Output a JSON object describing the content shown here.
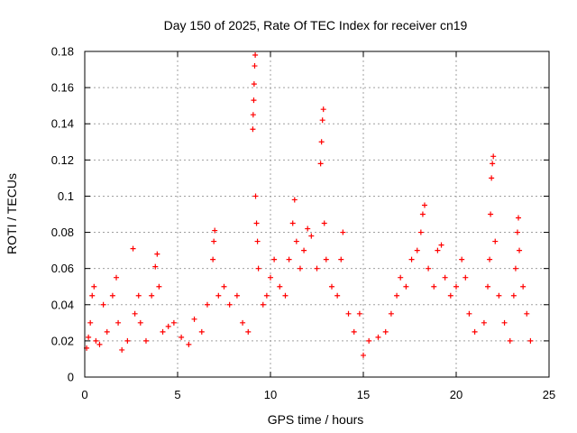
{
  "chart_data": {
    "type": "scatter",
    "title": "Day 150 of 2025, Rate Of TEC Index for receiver cn19",
    "xlabel": "GPS time / hours",
    "ylabel": "ROTI / TECUs",
    "xlim": [
      0,
      25
    ],
    "ylim": [
      0,
      0.18
    ],
    "x_ticks": [
      0,
      5,
      10,
      15,
      20,
      25
    ],
    "x_tick_labels": [
      "0",
      "5",
      "10",
      "15",
      "20",
      "25"
    ],
    "y_ticks": [
      0,
      0.02,
      0.04,
      0.06,
      0.08,
      0.1,
      0.12,
      0.14,
      0.16,
      0.18
    ],
    "y_tick_labels": [
      "0",
      "0.02",
      "0.04",
      "0.06",
      "0.08",
      "0.1",
      "0.12",
      "0.14",
      "0.16",
      "0.18"
    ],
    "grid": true,
    "marker": "plus",
    "color": "#ff0000",
    "series": [
      {
        "points": [
          [
            0.1,
            0.016
          ],
          [
            0.2,
            0.022
          ],
          [
            0.3,
            0.03
          ],
          [
            0.4,
            0.045
          ],
          [
            0.5,
            0.05
          ],
          [
            0.6,
            0.02
          ],
          [
            0.8,
            0.018
          ],
          [
            1.0,
            0.04
          ],
          [
            1.2,
            0.025
          ],
          [
            1.5,
            0.045
          ],
          [
            1.7,
            0.055
          ],
          [
            1.8,
            0.03
          ],
          [
            2.0,
            0.015
          ],
          [
            2.3,
            0.02
          ],
          [
            2.6,
            0.071
          ],
          [
            2.7,
            0.035
          ],
          [
            2.9,
            0.045
          ],
          [
            3.0,
            0.03
          ],
          [
            3.3,
            0.02
          ],
          [
            3.6,
            0.045
          ],
          [
            3.8,
            0.061
          ],
          [
            3.9,
            0.068
          ],
          [
            4.0,
            0.05
          ],
          [
            4.2,
            0.025
          ],
          [
            4.5,
            0.028
          ],
          [
            4.8,
            0.03
          ],
          [
            5.2,
            0.022
          ],
          [
            5.6,
            0.018
          ],
          [
            5.9,
            0.032
          ],
          [
            6.3,
            0.025
          ],
          [
            6.6,
            0.04
          ],
          [
            6.9,
            0.065
          ],
          [
            6.95,
            0.075
          ],
          [
            7.0,
            0.081
          ],
          [
            7.2,
            0.045
          ],
          [
            7.5,
            0.05
          ],
          [
            7.8,
            0.04
          ],
          [
            8.2,
            0.045
          ],
          [
            8.5,
            0.03
          ],
          [
            8.8,
            0.025
          ],
          [
            9.05,
            0.137
          ],
          [
            9.07,
            0.145
          ],
          [
            9.1,
            0.153
          ],
          [
            9.12,
            0.162
          ],
          [
            9.15,
            0.172
          ],
          [
            9.18,
            0.178
          ],
          [
            9.2,
            0.1
          ],
          [
            9.25,
            0.085
          ],
          [
            9.3,
            0.075
          ],
          [
            9.35,
            0.06
          ],
          [
            9.6,
            0.04
          ],
          [
            9.8,
            0.045
          ],
          [
            10.0,
            0.055
          ],
          [
            10.2,
            0.065
          ],
          [
            10.5,
            0.05
          ],
          [
            10.8,
            0.045
          ],
          [
            11.0,
            0.065
          ],
          [
            11.2,
            0.085
          ],
          [
            11.3,
            0.098
          ],
          [
            11.4,
            0.075
          ],
          [
            11.6,
            0.06
          ],
          [
            11.8,
            0.07
          ],
          [
            12.0,
            0.082
          ],
          [
            12.2,
            0.078
          ],
          [
            12.5,
            0.06
          ],
          [
            12.7,
            0.118
          ],
          [
            12.75,
            0.13
          ],
          [
            12.8,
            0.142
          ],
          [
            12.85,
            0.148
          ],
          [
            12.9,
            0.085
          ],
          [
            13.0,
            0.065
          ],
          [
            13.3,
            0.05
          ],
          [
            13.6,
            0.045
          ],
          [
            13.8,
            0.065
          ],
          [
            13.9,
            0.08
          ],
          [
            14.2,
            0.035
          ],
          [
            14.5,
            0.025
          ],
          [
            14.8,
            0.035
          ],
          [
            15.0,
            0.012
          ],
          [
            15.3,
            0.02
          ],
          [
            15.8,
            0.022
          ],
          [
            16.2,
            0.025
          ],
          [
            16.5,
            0.035
          ],
          [
            16.8,
            0.045
          ],
          [
            17.0,
            0.055
          ],
          [
            17.3,
            0.05
          ],
          [
            17.6,
            0.065
          ],
          [
            17.9,
            0.07
          ],
          [
            18.1,
            0.08
          ],
          [
            18.2,
            0.09
          ],
          [
            18.3,
            0.095
          ],
          [
            18.5,
            0.06
          ],
          [
            18.8,
            0.05
          ],
          [
            19.0,
            0.07
          ],
          [
            19.2,
            0.073
          ],
          [
            19.4,
            0.055
          ],
          [
            19.7,
            0.045
          ],
          [
            20.0,
            0.05
          ],
          [
            20.3,
            0.065
          ],
          [
            20.5,
            0.055
          ],
          [
            20.7,
            0.035
          ],
          [
            21.0,
            0.025
          ],
          [
            21.5,
            0.03
          ],
          [
            21.7,
            0.05
          ],
          [
            21.8,
            0.065
          ],
          [
            21.85,
            0.09
          ],
          [
            21.9,
            0.11
          ],
          [
            21.95,
            0.118
          ],
          [
            22.0,
            0.122
          ],
          [
            22.1,
            0.075
          ],
          [
            22.3,
            0.045
          ],
          [
            22.6,
            0.03
          ],
          [
            22.9,
            0.02
          ],
          [
            23.1,
            0.045
          ],
          [
            23.2,
            0.06
          ],
          [
            23.3,
            0.08
          ],
          [
            23.35,
            0.088
          ],
          [
            23.4,
            0.07
          ],
          [
            23.6,
            0.05
          ],
          [
            23.8,
            0.035
          ],
          [
            24.0,
            0.02
          ]
        ]
      }
    ]
  }
}
